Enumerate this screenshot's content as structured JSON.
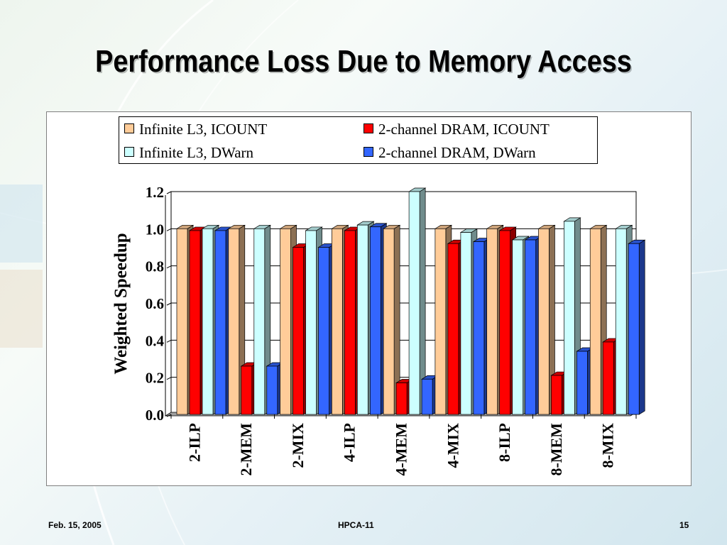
{
  "slide": {
    "title": "Performance Loss Due to Memory Access",
    "footer_left": "Feb. 15, 2005",
    "footer_center": "HPCA-11",
    "footer_right": "15"
  },
  "chart_data": {
    "type": "bar",
    "title": "",
    "xlabel": "",
    "ylabel": "Weighted Speedup",
    "ylim": [
      0,
      1.2
    ],
    "yticks": [
      "0.0",
      "0.2",
      "0.4",
      "0.6",
      "0.8",
      "1.0",
      "1.2"
    ],
    "grid": true,
    "legend_position": "top",
    "categories": [
      "2-ILP",
      "2-MEM",
      "2-MIX",
      "4-ILP",
      "4-MEM",
      "4-MIX",
      "8-ILP",
      "8-MEM",
      "8-MIX"
    ],
    "series": [
      {
        "name": "Infinite L3, ICOUNT",
        "color": "#FFCC99",
        "values": [
          1.0,
          1.0,
          1.0,
          1.0,
          1.0,
          1.0,
          1.0,
          1.0,
          1.0
        ]
      },
      {
        "name": "2-channel DRAM, ICOUNT",
        "color": "#FF0000",
        "values": [
          0.99,
          0.26,
          0.9,
          0.99,
          0.17,
          0.92,
          0.99,
          0.21,
          0.39
        ]
      },
      {
        "name": "Infinite L3, DWarn",
        "color": "#CCFFFF",
        "values": [
          1.0,
          1.0,
          0.99,
          1.02,
          1.2,
          0.98,
          0.94,
          1.04,
          1.0
        ]
      },
      {
        "name": "2-channel DRAM, DWarn",
        "color": "#3366FF",
        "values": [
          0.99,
          0.26,
          0.9,
          1.01,
          0.19,
          0.93,
          0.94,
          0.34,
          0.92
        ]
      }
    ]
  }
}
